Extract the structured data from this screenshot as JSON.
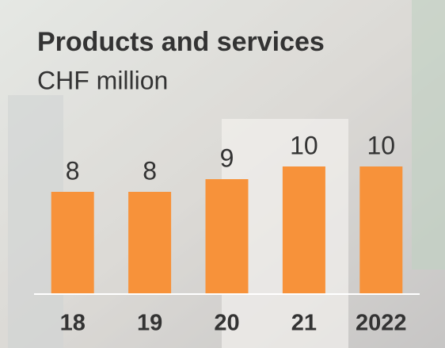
{
  "chart_data": {
    "type": "bar",
    "title": "Products and services",
    "subtitle": "CHF million",
    "categories": [
      "18",
      "19",
      "20",
      "21",
      "2022"
    ],
    "values": [
      8,
      8,
      9,
      10,
      10
    ],
    "color": "#f7923a",
    "ylim": [
      0,
      10
    ]
  }
}
